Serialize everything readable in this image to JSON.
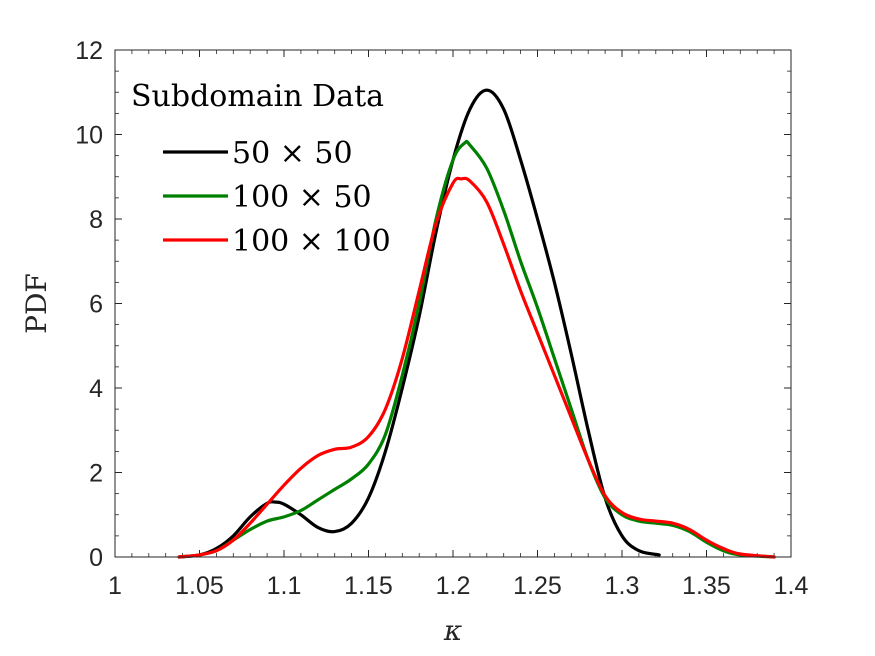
{
  "chart_data": {
    "type": "line",
    "title": "",
    "xlabel": "κ",
    "ylabel": "PDF",
    "xlim": [
      1,
      1.4
    ],
    "ylim": [
      0,
      12
    ],
    "xticks": [
      "1",
      "1.05",
      "1.1",
      "1.15",
      "1.2",
      "1.25",
      "1.3",
      "1.35",
      "1.4"
    ],
    "yticks": [
      "0",
      "2",
      "4",
      "6",
      "8",
      "10",
      "12"
    ],
    "grid": false,
    "legend": {
      "title": "Subdomain Data",
      "placement": "top-left"
    },
    "series": [
      {
        "name": "50 × 50",
        "color": "#000000",
        "points": [
          [
            1.038,
            0.0
          ],
          [
            1.05,
            0.05
          ],
          [
            1.06,
            0.2
          ],
          [
            1.07,
            0.5
          ],
          [
            1.08,
            0.95
          ],
          [
            1.09,
            1.27
          ],
          [
            1.095,
            1.3
          ],
          [
            1.1,
            1.25
          ],
          [
            1.11,
            1.0
          ],
          [
            1.12,
            0.7
          ],
          [
            1.13,
            0.6
          ],
          [
            1.14,
            0.8
          ],
          [
            1.15,
            1.4
          ],
          [
            1.16,
            2.5
          ],
          [
            1.17,
            4.0
          ],
          [
            1.18,
            5.7
          ],
          [
            1.19,
            7.7
          ],
          [
            1.2,
            9.4
          ],
          [
            1.21,
            10.6
          ],
          [
            1.22,
            11.05
          ],
          [
            1.23,
            10.6
          ],
          [
            1.24,
            9.4
          ],
          [
            1.25,
            8.0
          ],
          [
            1.26,
            6.5
          ],
          [
            1.27,
            4.8
          ],
          [
            1.28,
            3.0
          ],
          [
            1.29,
            1.4
          ],
          [
            1.3,
            0.5
          ],
          [
            1.31,
            0.15
          ],
          [
            1.322,
            0.05
          ]
        ]
      },
      {
        "name": "100 × 50",
        "color": "#008000",
        "points": [
          [
            1.038,
            0.0
          ],
          [
            1.05,
            0.05
          ],
          [
            1.06,
            0.15
          ],
          [
            1.07,
            0.4
          ],
          [
            1.08,
            0.65
          ],
          [
            1.09,
            0.85
          ],
          [
            1.1,
            0.95
          ],
          [
            1.11,
            1.1
          ],
          [
            1.12,
            1.35
          ],
          [
            1.13,
            1.6
          ],
          [
            1.14,
            1.85
          ],
          [
            1.15,
            2.2
          ],
          [
            1.16,
            2.9
          ],
          [
            1.17,
            4.3
          ],
          [
            1.18,
            6.0
          ],
          [
            1.19,
            8.0
          ],
          [
            1.2,
            9.4
          ],
          [
            1.207,
            9.8
          ],
          [
            1.21,
            9.75
          ],
          [
            1.22,
            9.2
          ],
          [
            1.23,
            8.2
          ],
          [
            1.24,
            7.0
          ],
          [
            1.25,
            5.9
          ],
          [
            1.26,
            4.7
          ],
          [
            1.27,
            3.5
          ],
          [
            1.28,
            2.3
          ],
          [
            1.29,
            1.4
          ],
          [
            1.3,
            1.0
          ],
          [
            1.31,
            0.85
          ],
          [
            1.32,
            0.8
          ],
          [
            1.33,
            0.75
          ],
          [
            1.34,
            0.6
          ],
          [
            1.35,
            0.35
          ],
          [
            1.36,
            0.15
          ],
          [
            1.37,
            0.05
          ],
          [
            1.39,
            0.0
          ]
        ]
      },
      {
        "name": "100 × 100",
        "color": "#ff0000",
        "points": [
          [
            1.038,
            0.0
          ],
          [
            1.05,
            0.05
          ],
          [
            1.06,
            0.15
          ],
          [
            1.07,
            0.4
          ],
          [
            1.08,
            0.8
          ],
          [
            1.09,
            1.25
          ],
          [
            1.1,
            1.7
          ],
          [
            1.11,
            2.1
          ],
          [
            1.12,
            2.4
          ],
          [
            1.13,
            2.55
          ],
          [
            1.14,
            2.6
          ],
          [
            1.15,
            2.85
          ],
          [
            1.16,
            3.5
          ],
          [
            1.17,
            4.7
          ],
          [
            1.18,
            6.3
          ],
          [
            1.19,
            7.9
          ],
          [
            1.2,
            8.85
          ],
          [
            1.205,
            8.95
          ],
          [
            1.21,
            8.9
          ],
          [
            1.22,
            8.4
          ],
          [
            1.23,
            7.4
          ],
          [
            1.24,
            6.3
          ],
          [
            1.25,
            5.3
          ],
          [
            1.26,
            4.3
          ],
          [
            1.27,
            3.3
          ],
          [
            1.28,
            2.3
          ],
          [
            1.29,
            1.45
          ],
          [
            1.3,
            1.05
          ],
          [
            1.31,
            0.9
          ],
          [
            1.32,
            0.85
          ],
          [
            1.33,
            0.8
          ],
          [
            1.34,
            0.65
          ],
          [
            1.35,
            0.4
          ],
          [
            1.36,
            0.2
          ],
          [
            1.37,
            0.07
          ],
          [
            1.39,
            0.0
          ]
        ]
      }
    ]
  }
}
